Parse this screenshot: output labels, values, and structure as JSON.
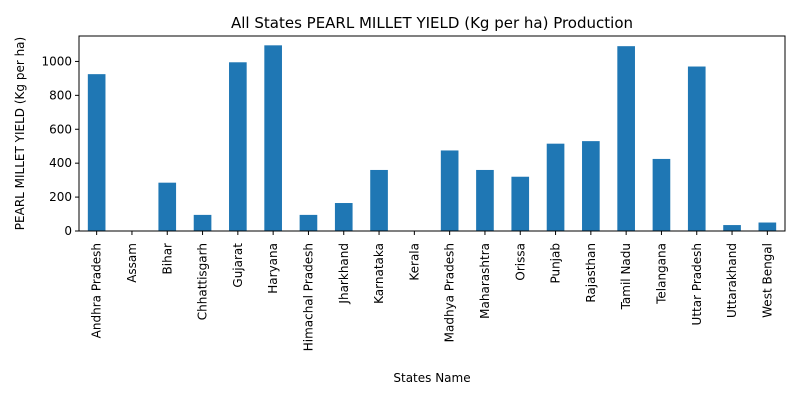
{
  "chart_data": {
    "type": "bar",
    "title": "All States PEARL MILLET YIELD (Kg per ha) Production",
    "xlabel": "States Name",
    "ylabel": "PEARL MILLET YIELD (Kg per ha)",
    "ylim": [
      0,
      1150
    ],
    "yticks": [
      0,
      200,
      400,
      600,
      800,
      1000
    ],
    "grid": false,
    "legend": "none",
    "bar_color": "#1f77b4",
    "categories": [
      "Andhra Pradesh",
      "Assam",
      "Bihar",
      "Chhattisgarh",
      "Gujarat",
      "Haryana",
      "Himachal Pradesh",
      "Jharkhand",
      "Karnataka",
      "Kerala",
      "Madhya Pradesh",
      "Maharashtra",
      "Orissa",
      "Punjab",
      "Rajasthan",
      "Tamil Nadu",
      "Telangana",
      "Uttar Pradesh",
      "Uttarakhand",
      "West Bengal"
    ],
    "values": [
      925,
      0,
      285,
      95,
      995,
      1095,
      95,
      165,
      360,
      0,
      475,
      360,
      320,
      515,
      530,
      1090,
      425,
      970,
      35,
      50
    ]
  }
}
